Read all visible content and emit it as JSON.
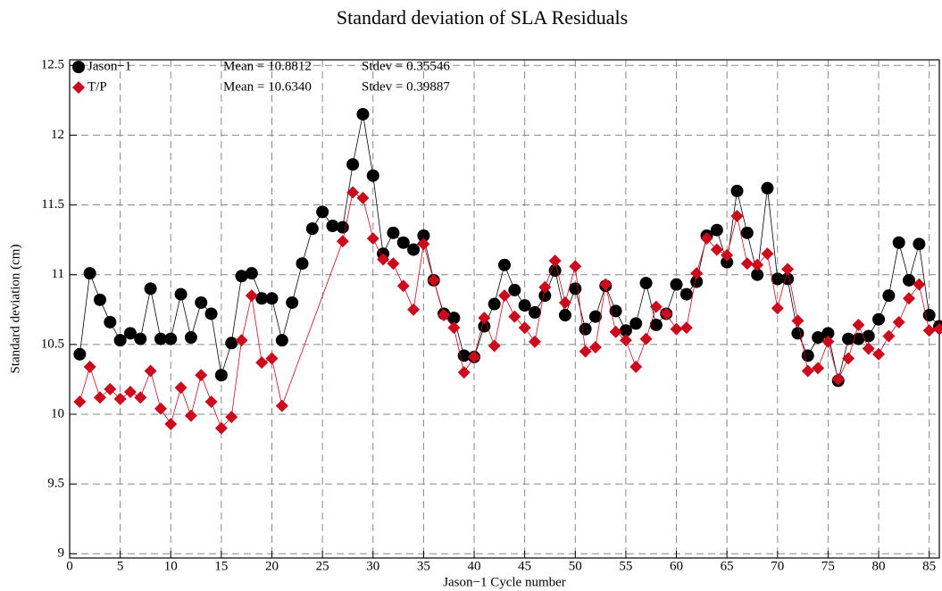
{
  "chart_data": {
    "type": "line",
    "title": "Standard deviation of SLA Residuals",
    "x_label": "Jason−1 Cycle number",
    "y_label": "Standard deviation (cm)",
    "xlim": [
      0,
      86
    ],
    "ylim": [
      8.97,
      12.54
    ],
    "xticks": [
      0,
      5,
      10,
      15,
      20,
      25,
      30,
      35,
      40,
      45,
      50,
      55,
      60,
      65,
      70,
      75,
      80,
      85
    ],
    "yticks": [
      9,
      9.5,
      10,
      10.5,
      11,
      11.5,
      12,
      12.5
    ],
    "grid": true,
    "legend": "upper left",
    "annotations": [
      "Mean = 10.8812",
      "Stdev = 0.35546",
      "Mean = 10.6340",
      "Stdev = 0.39887"
    ],
    "series": [
      {
        "name": "Jason−1",
        "color": "#000000",
        "marker": "circle",
        "x": [
          1,
          2,
          3,
          4,
          5,
          6,
          7,
          8,
          9,
          10,
          11,
          12,
          13,
          14,
          15,
          16,
          17,
          18,
          19,
          20,
          21,
          22,
          23,
          24,
          25,
          26,
          27,
          28,
          29,
          30,
          31,
          32,
          33,
          34,
          35,
          36,
          37,
          38,
          39,
          40,
          41,
          42,
          43,
          44,
          45,
          46,
          47,
          48,
          49,
          50,
          51,
          52,
          53,
          54,
          55,
          56,
          57,
          58,
          59,
          60,
          61,
          62,
          63,
          64,
          65,
          66,
          67,
          68,
          69,
          70,
          71,
          72,
          73,
          74,
          75,
          76,
          77,
          78,
          79,
          80,
          81,
          82,
          83,
          84,
          85,
          86
        ],
        "values": [
          10.43,
          11.01,
          10.82,
          10.66,
          10.53,
          10.58,
          10.54,
          10.9,
          10.54,
          10.54,
          10.86,
          10.55,
          10.8,
          10.72,
          10.28,
          10.51,
          10.99,
          11.01,
          10.83,
          10.83,
          10.53,
          10.8,
          11.08,
          11.33,
          11.45,
          11.35,
          11.34,
          11.79,
          12.15,
          11.71,
          11.15,
          11.3,
          11.23,
          11.18,
          11.28,
          10.96,
          10.72,
          10.69,
          10.42,
          10.41,
          10.63,
          10.79,
          11.07,
          10.89,
          10.78,
          10.73,
          10.85,
          11.03,
          10.71,
          10.9,
          10.61,
          10.7,
          10.92,
          10.74,
          10.6,
          10.65,
          10.94,
          10.64,
          10.72,
          10.93,
          10.86,
          10.95,
          11.28,
          11.32,
          11.09,
          11.6,
          11.3,
          11.0,
          11.62,
          10.97,
          10.97,
          10.58,
          10.42,
          10.55,
          10.58,
          10.24,
          10.54,
          10.54,
          10.56,
          10.68,
          10.85,
          11.23,
          10.96,
          11.22,
          10.71,
          10.63
        ]
      },
      {
        "name": "T/P",
        "color": "#cc0a1e",
        "marker": "diamond",
        "x": [
          1,
          2,
          3,
          4,
          5,
          6,
          7,
          8,
          9,
          10,
          11,
          12,
          13,
          14,
          15,
          16,
          17,
          18,
          19,
          20,
          21,
          27,
          28,
          29,
          30,
          31,
          32,
          33,
          34,
          35,
          36,
          37,
          38,
          39,
          40,
          41,
          42,
          43,
          44,
          45,
          46,
          47,
          48,
          49,
          50,
          51,
          52,
          53,
          54,
          55,
          56,
          57,
          58,
          59,
          60,
          61,
          62,
          63,
          64,
          65,
          66,
          67,
          68,
          69,
          70,
          71,
          72,
          73,
          74,
          75,
          76,
          77,
          78,
          79,
          80,
          81,
          82,
          83,
          84,
          85,
          86
        ],
        "values": [
          10.09,
          10.34,
          10.12,
          10.18,
          10.11,
          10.16,
          10.12,
          10.31,
          10.04,
          9.93,
          10.19,
          9.99,
          10.28,
          10.09,
          9.9,
          9.98,
          10.53,
          10.85,
          10.37,
          10.4,
          10.06,
          11.24,
          11.59,
          11.55,
          11.26,
          11.11,
          11.08,
          10.92,
          10.75,
          11.22,
          10.96,
          10.71,
          10.62,
          10.3,
          10.41,
          10.69,
          10.49,
          10.85,
          10.7,
          10.62,
          10.52,
          10.91,
          11.1,
          10.8,
          11.06,
          10.45,
          10.48,
          10.93,
          10.59,
          10.53,
          10.34,
          10.54,
          10.77,
          10.72,
          10.61,
          10.62,
          11.01,
          11.26,
          11.18,
          11.14,
          11.42,
          11.08,
          11.07,
          11.15,
          10.76,
          11.04,
          10.67,
          10.31,
          10.33,
          10.52,
          10.25,
          10.4,
          10.64,
          10.47,
          10.43,
          10.56,
          10.66,
          10.83,
          10.93,
          10.6,
          10.61
        ]
      }
    ]
  }
}
